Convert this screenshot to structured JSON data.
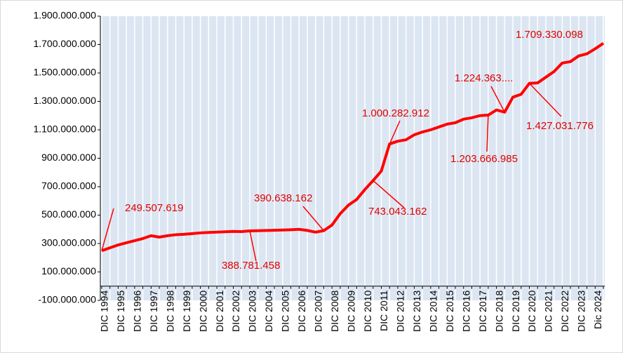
{
  "chart_data": {
    "type": "line",
    "categories": [
      "DIC 1994",
      null,
      "DIC 1995",
      null,
      "DIC 1996",
      null,
      "DIC 1997",
      null,
      "DIC 1998",
      null,
      "DIC 1999",
      null,
      "DIC 2000",
      null,
      "DIC 2001",
      null,
      "DIC 2002",
      null,
      "DIC 2003",
      null,
      "DIC 2004",
      null,
      "DIC 2005",
      null,
      "DIC 2006",
      null,
      "DIC 2007",
      null,
      "DIC 2008",
      null,
      "DIC 2009",
      null,
      "DIC 2010",
      null,
      "DIC 2011",
      null,
      "DIC 2012",
      null,
      "DIC 2013",
      null,
      "DIC 2014",
      null,
      "DIC 2015",
      null,
      "DIC 2016",
      null,
      "DIC 2017",
      null,
      "DIC 2018",
      null,
      "DIC 2019",
      null,
      "DIC 2020",
      null,
      "DIC 2021",
      null,
      "DIC 2022",
      null,
      "DIC 2023",
      null,
      "Dic 2024",
      null
    ],
    "series": [
      {
        "color": "#ff0000",
        "values": [
          249507619,
          270000000,
          290000000,
          305000000,
          320000000,
          335000000,
          355000000,
          345000000,
          355000000,
          362000000,
          365000000,
          370000000,
          375000000,
          378000000,
          380000000,
          383000000,
          385000000,
          384000000,
          388781458,
          390000000,
          392000000,
          393000000,
          395000000,
          397000000,
          400000000,
          392000000,
          380000000,
          390638162,
          430000000,
          510000000,
          570000000,
          610000000,
          680000000,
          743043162,
          810000000,
          1000282912,
          1020000000,
          1030000000,
          1065000000,
          1085000000,
          1100000000,
          1120000000,
          1140000000,
          1150000000,
          1175000000,
          1185000000,
          1200000000,
          1203666985,
          1240000000,
          1224363000,
          1330000000,
          1350000000,
          1427031776,
          1430000000,
          1470000000,
          1510000000,
          1570000000,
          1580000000,
          1620000000,
          1635000000,
          1670000000,
          1709330098
        ],
        "value_labels": [
          "249.507.619",
          null,
          null,
          null,
          null,
          null,
          null,
          null,
          null,
          null,
          null,
          null,
          null,
          null,
          null,
          null,
          null,
          null,
          "388.781.458",
          null,
          null,
          null,
          null,
          null,
          null,
          null,
          null,
          "390.638.162",
          null,
          null,
          null,
          null,
          null,
          "743.043.162",
          null,
          "1.000.282.912",
          null,
          null,
          null,
          null,
          null,
          null,
          null,
          null,
          null,
          null,
          null,
          "1.203.666.985",
          null,
          "1.224.363....",
          null,
          null,
          "1.427.031.776",
          null,
          null,
          null,
          null,
          null,
          null,
          null,
          null,
          "1.709.330.098"
        ]
      }
    ],
    "ylim": [
      -100000000,
      1900000000
    ],
    "yticks": [
      {
        "value": -100000000,
        "label": "-100.000.000"
      },
      {
        "value": 100000000,
        "label": "100.000.000"
      },
      {
        "value": 300000000,
        "label": "300.000.000"
      },
      {
        "value": 500000000,
        "label": "500.000.000"
      },
      {
        "value": 700000000,
        "label": "700.000.000"
      },
      {
        "value": 900000000,
        "label": "900.000.000"
      },
      {
        "value": 1100000000,
        "label": "1.100.000.000"
      },
      {
        "value": 1300000000,
        "label": "1.300.000.000"
      },
      {
        "value": 1500000000,
        "label": "1.500.000.000"
      },
      {
        "value": 1700000000,
        "label": "1.700.000.000"
      },
      {
        "value": 1900000000,
        "label": "1.900.000.000"
      }
    ],
    "grid": true
  }
}
